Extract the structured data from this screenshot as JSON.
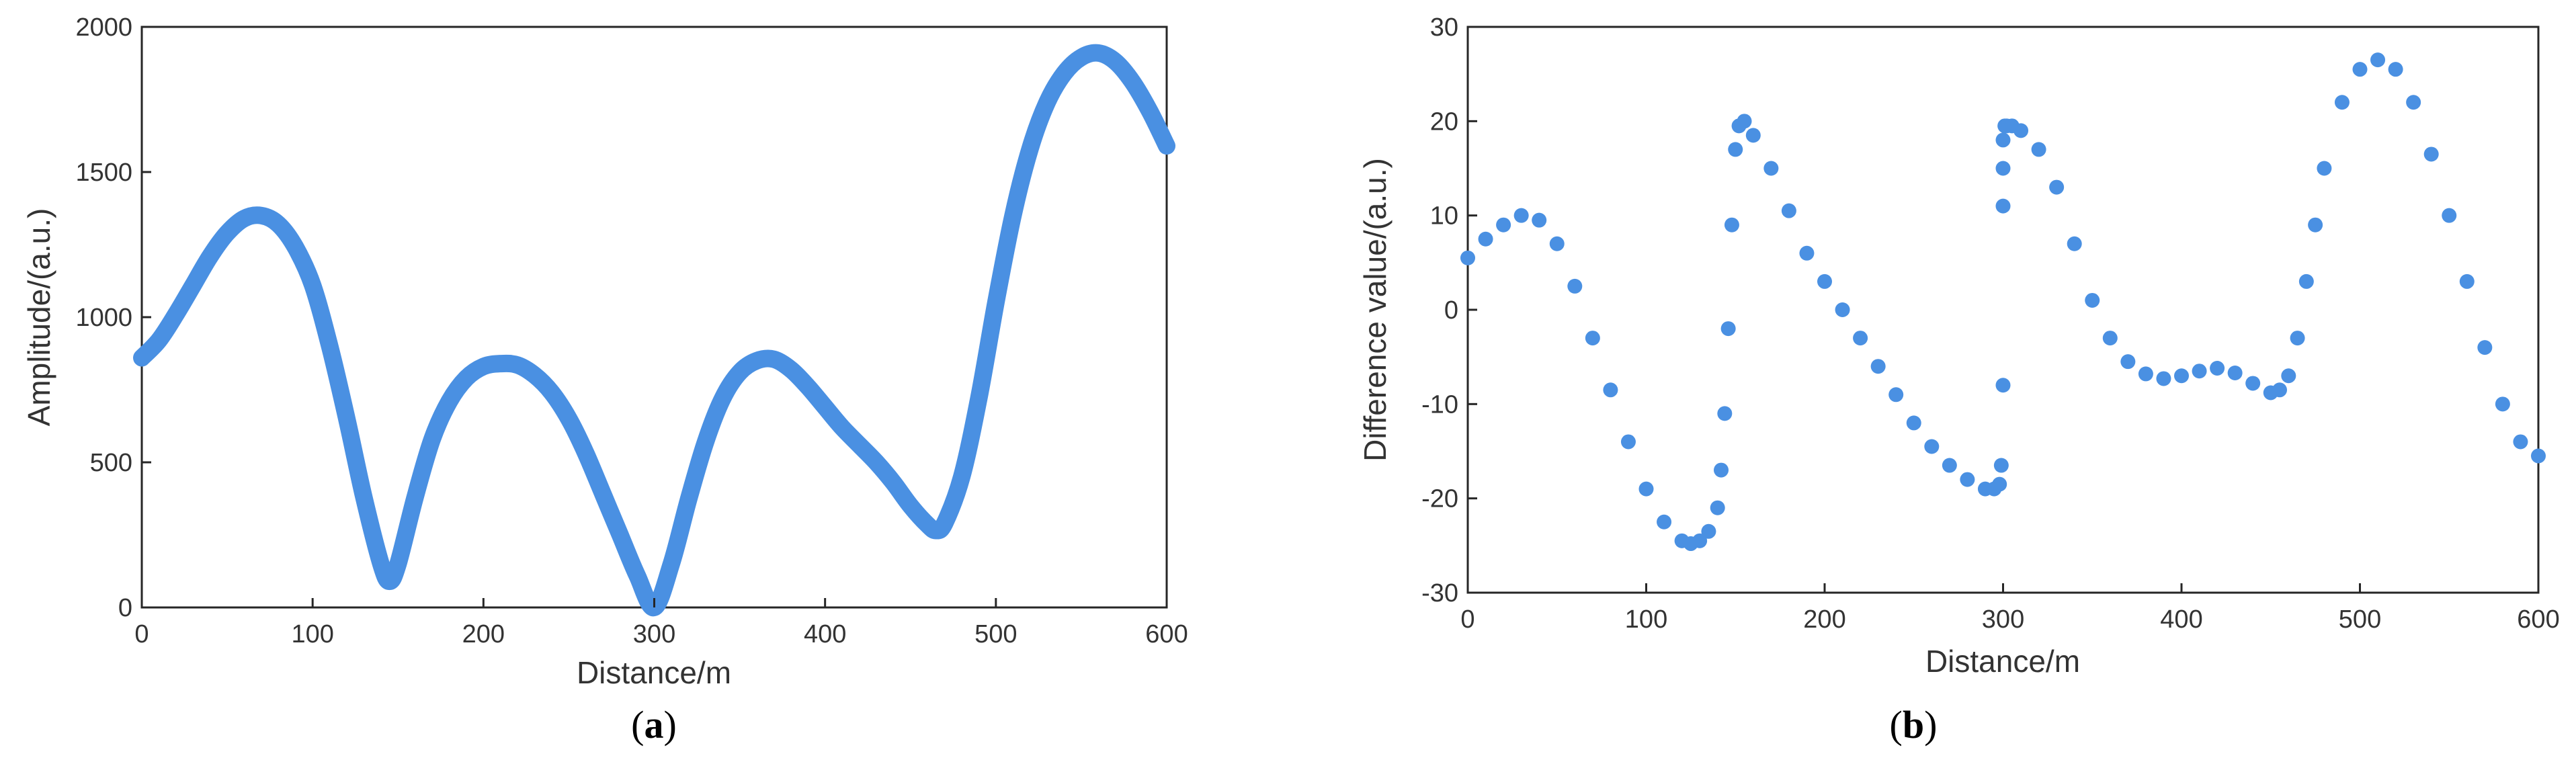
{
  "chart_data": [
    {
      "type": "line",
      "panel": "a",
      "caption_letter": "a",
      "xlabel": "Distance/m",
      "ylabel": "Amplitude/(a.u.)",
      "xlim": [
        0,
        600
      ],
      "ylim": [
        0,
        2000
      ],
      "xticks": [
        0,
        100,
        200,
        300,
        400,
        500,
        600
      ],
      "yticks": [
        0,
        500,
        1000,
        1500,
        2000
      ],
      "grid": false,
      "color": "#4a90e2",
      "series": [
        {
          "x": [
            0,
            10,
            20,
            30,
            40,
            50,
            60,
            70,
            80,
            90,
            100,
            110,
            120,
            130,
            140,
            145,
            150,
            160,
            170,
            180,
            190,
            200,
            210,
            220,
            230,
            240,
            250,
            260,
            270,
            280,
            290,
            300,
            310,
            320,
            330,
            340,
            350,
            360,
            370,
            380,
            390,
            400,
            410,
            420,
            430,
            440,
            450,
            460,
            465,
            470,
            480,
            490,
            500,
            510,
            520,
            530,
            540,
            550,
            560,
            570,
            580,
            590,
            600
          ],
          "y": [
            860,
            920,
            1010,
            1110,
            1210,
            1290,
            1340,
            1350,
            1320,
            1240,
            1110,
            900,
            650,
            380,
            150,
            90,
            150,
            380,
            580,
            710,
            790,
            830,
            840,
            835,
            800,
            740,
            650,
            530,
            390,
            250,
            110,
            0,
            150,
            370,
            570,
            720,
            810,
            850,
            855,
            820,
            760,
            690,
            620,
            560,
            500,
            430,
            350,
            285,
            265,
            290,
            450,
            720,
            1050,
            1350,
            1580,
            1740,
            1840,
            1895,
            1910,
            1880,
            1810,
            1710,
            1590
          ]
        }
      ]
    },
    {
      "type": "scatter",
      "panel": "b",
      "caption_letter": "b",
      "xlabel": "Distance/m",
      "ylabel": "Difference value/(a.u.)",
      "xlim": [
        0,
        600
      ],
      "ylim": [
        -30,
        30
      ],
      "xticks": [
        0,
        100,
        200,
        300,
        400,
        500,
        600
      ],
      "yticks": [
        -30,
        -20,
        -10,
        0,
        10,
        20,
        30
      ],
      "grid": false,
      "color": "#4a90e2",
      "series": [
        {
          "x": [
            0,
            10,
            20,
            30,
            40,
            50,
            60,
            70,
            80,
            90,
            100,
            110,
            120,
            125,
            130,
            135,
            140,
            142,
            144,
            146,
            148,
            150,
            152,
            155,
            160,
            170,
            180,
            190,
            200,
            210,
            220,
            230,
            240,
            250,
            260,
            270,
            280,
            290,
            295,
            298,
            299,
            300,
            300,
            300,
            300,
            301,
            302,
            305,
            310,
            320,
            330,
            340,
            350,
            360,
            370,
            380,
            390,
            400,
            410,
            420,
            430,
            440,
            450,
            455,
            460,
            465,
            470,
            475,
            480,
            490,
            500,
            510,
            520,
            530,
            540,
            550,
            560,
            570,
            580,
            590,
            600
          ],
          "y": [
            5.5,
            7.5,
            9,
            10,
            9.5,
            7,
            2.5,
            -3,
            -8.5,
            -14,
            -19,
            -22.5,
            -24.5,
            -24.8,
            -24.5,
            -23.5,
            -21,
            -17,
            -11,
            -2,
            9,
            17,
            19.5,
            20,
            18.5,
            15,
            10.5,
            6,
            3,
            0,
            -3,
            -6,
            -9,
            -12,
            -14.5,
            -16.5,
            -18,
            -19,
            -19,
            -18.5,
            -16.5,
            -8,
            11,
            15,
            18,
            19.5,
            19.5,
            19.5,
            19,
            17,
            13,
            7,
            1,
            -3,
            -5.5,
            -6.8,
            -7.3,
            -7,
            -6.5,
            -6.2,
            -6.7,
            -7.8,
            -8.8,
            -8.5,
            -7,
            -3,
            3,
            9,
            15,
            22,
            25.5,
            26.5,
            25.5,
            22,
            16.5,
            10,
            3,
            -4,
            -10,
            -14,
            -15.5
          ]
        }
      ]
    }
  ]
}
